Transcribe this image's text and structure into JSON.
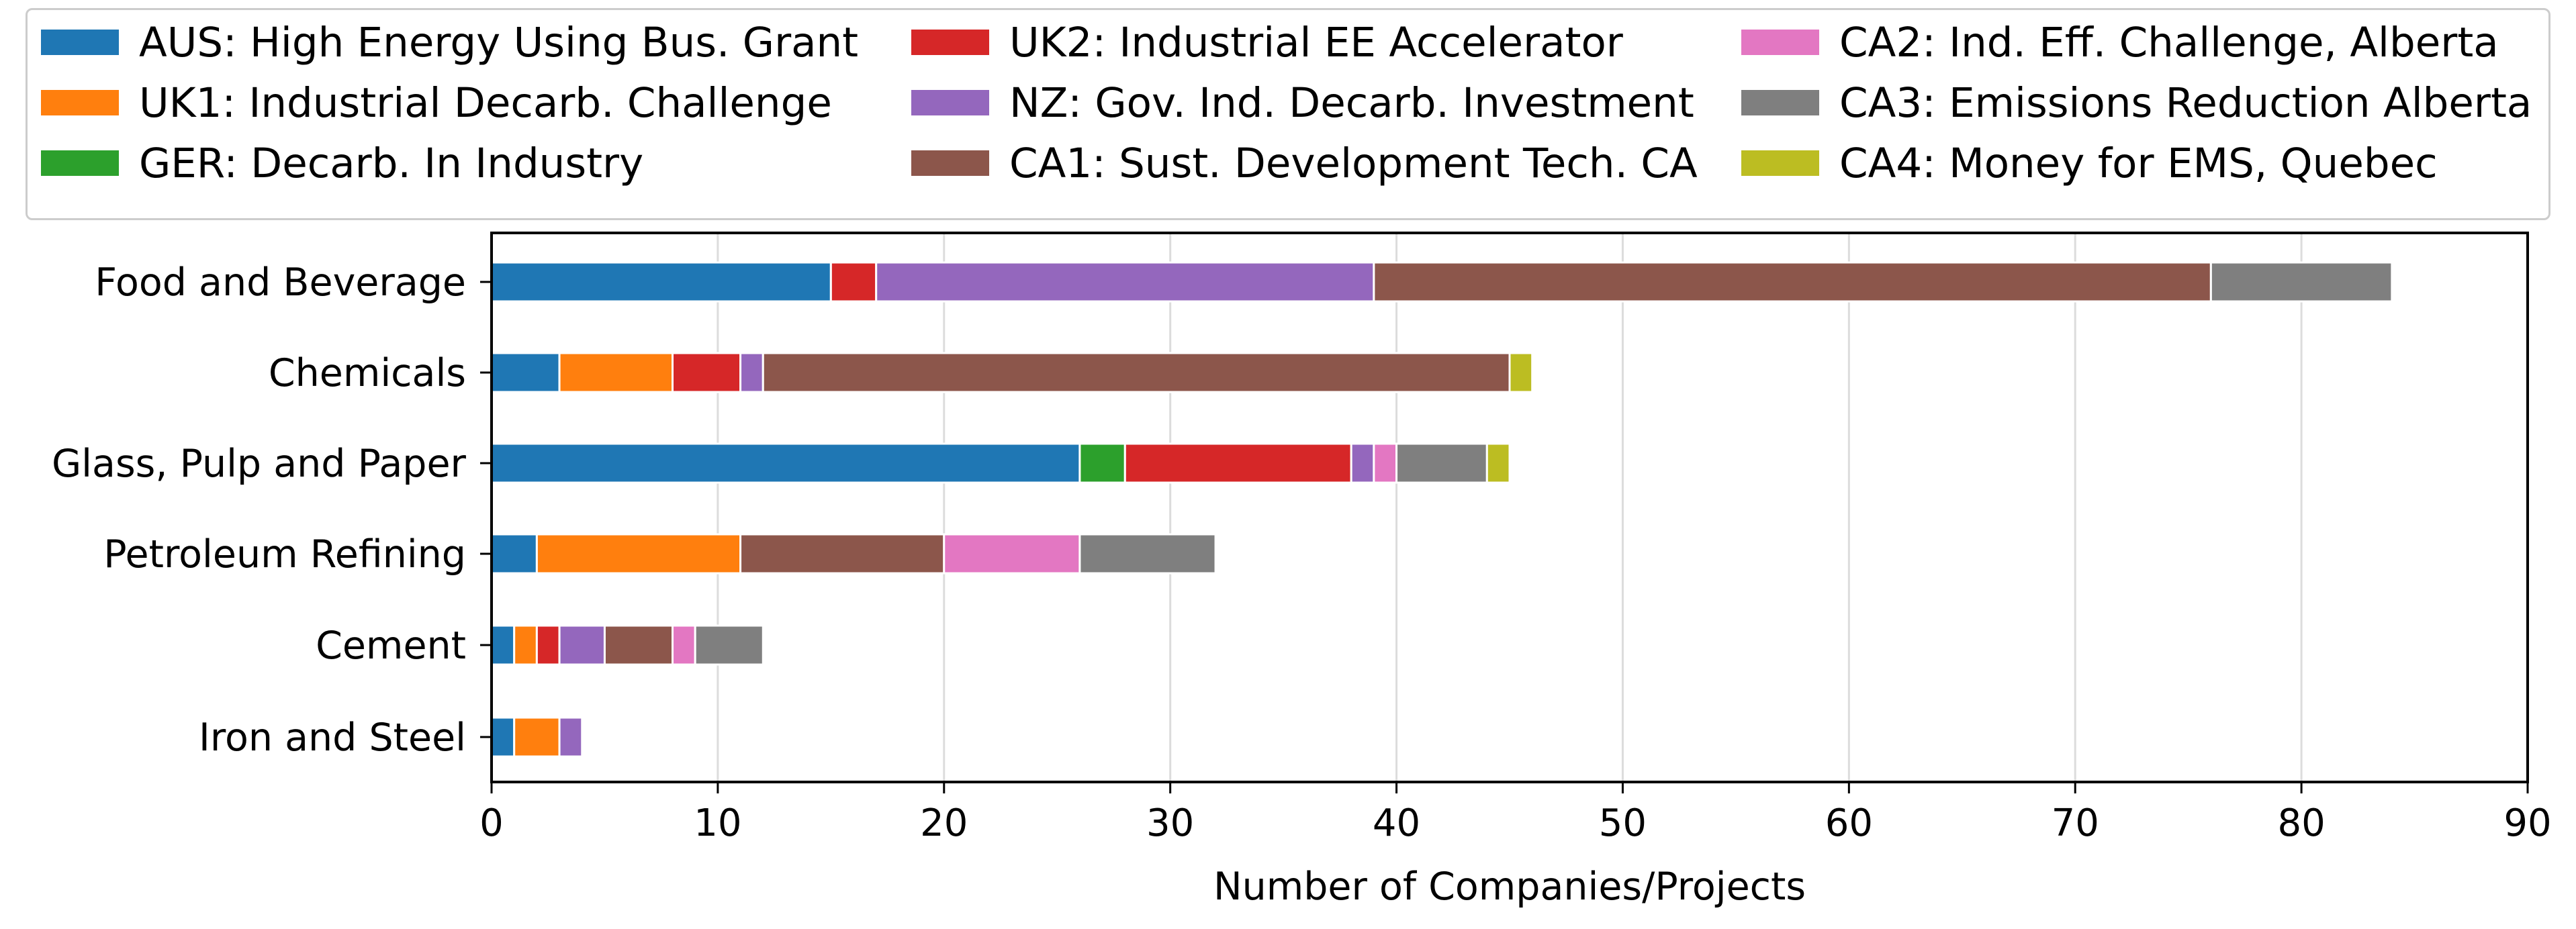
{
  "chart_data": {
    "type": "bar",
    "orientation": "horizontal",
    "stacked": true,
    "title": "",
    "xlabel": "Number of Companies/Projects",
    "ylabel": "",
    "xlim": [
      0,
      90
    ],
    "xticks": [
      0,
      10,
      20,
      30,
      40,
      50,
      60,
      70,
      80,
      90
    ],
    "grid": "vertical",
    "legend_position": "top",
    "categories": [
      "Food and Beverage",
      "Chemicals",
      "Glass, Pulp and Paper",
      "Petroleum Refining",
      "Cement",
      "Iron and Steel"
    ],
    "series": [
      {
        "name": "AUS: High Energy Using Bus. Grant",
        "color": "#1f77b4",
        "values": [
          15,
          3,
          26,
          2,
          1,
          1
        ]
      },
      {
        "name": "UK1: Industrial Decarb. Challenge",
        "color": "#ff7f0e",
        "values": [
          0,
          5,
          0,
          9,
          1,
          2
        ]
      },
      {
        "name": "GER: Decarb. In Industry",
        "color": "#2ca02c",
        "values": [
          0,
          0,
          2,
          0,
          0,
          0
        ]
      },
      {
        "name": "UK2: Industrial EE Accelerator",
        "color": "#d62728",
        "values": [
          2,
          3,
          10,
          0,
          1,
          0
        ]
      },
      {
        "name": "NZ: Gov. Ind. Decarb. Investment",
        "color": "#9467bd",
        "values": [
          22,
          1,
          1,
          0,
          2,
          1
        ]
      },
      {
        "name": "CA1: Sust. Development Tech. CA",
        "color": "#8c564b",
        "values": [
          37,
          33,
          0,
          9,
          3,
          0
        ]
      },
      {
        "name": "CA2: Ind. Eff. Challenge, Alberta",
        "color": "#e377c2",
        "values": [
          0,
          0,
          1,
          6,
          1,
          0
        ]
      },
      {
        "name": "CA3: Emissions Reduction Alberta",
        "color": "#7f7f7f",
        "values": [
          8,
          0,
          4,
          6,
          3,
          0
        ]
      },
      {
        "name": "CA4: Money for EMS, Quebec",
        "color": "#bcbd22",
        "values": [
          0,
          1,
          1,
          0,
          0,
          0
        ]
      }
    ]
  }
}
